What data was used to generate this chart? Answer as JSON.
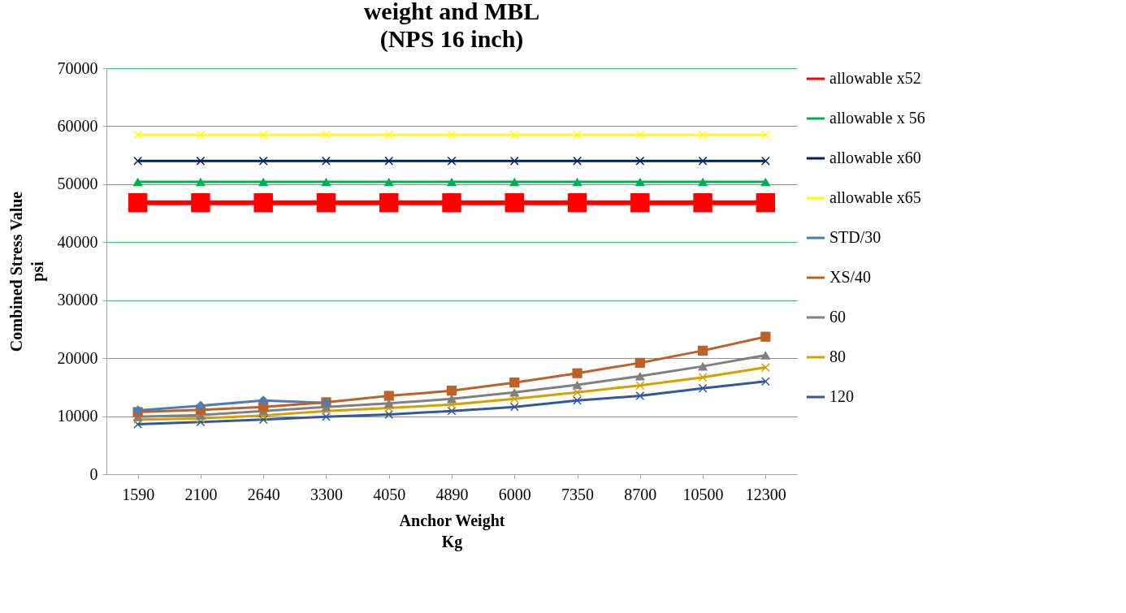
{
  "chart_data": {
    "type": "line",
    "title": [
      "weight and MBL",
      "(NPS 16 inch)"
    ],
    "xlabel": [
      "Anchor Weight",
      "Kg"
    ],
    "ylabel": [
      "Combined Stress Value",
      "psi"
    ],
    "categories": [
      "1590",
      "2100",
      "2640",
      "3300",
      "4050",
      "4890",
      "6000",
      "7350",
      "8700",
      "10500",
      "12300"
    ],
    "ylim": [
      0,
      70000
    ],
    "yticks": [
      0,
      10000,
      20000,
      30000,
      40000,
      50000,
      60000,
      70000
    ],
    "grid": "y",
    "legend": "right",
    "series": [
      {
        "name": "allowable x52",
        "color": "#ff0000",
        "marker": "square",
        "values": [
          46800,
          46800,
          46800,
          46800,
          46800,
          46800,
          46800,
          46800,
          46800,
          46800,
          46800
        ]
      },
      {
        "name": "allowable x 56",
        "color": "#00b050",
        "marker": "triangle",
        "values": [
          50400,
          50400,
          50400,
          50400,
          50400,
          50400,
          50400,
          50400,
          50400,
          50400,
          50400
        ]
      },
      {
        "name": "allowable x60",
        "color": "#002060",
        "marker": "cross",
        "values": [
          54000,
          54000,
          54000,
          54000,
          54000,
          54000,
          54000,
          54000,
          54000,
          54000,
          54000
        ]
      },
      {
        "name": "allowable x65",
        "color": "#ffff00",
        "marker": "cross",
        "values": [
          58500,
          58500,
          58500,
          58500,
          58500,
          58500,
          58500,
          58500,
          58500,
          58500,
          58500
        ]
      },
      {
        "name": "STD/30",
        "color": "#4a7ebb",
        "marker": "diamond",
        "values": [
          11000,
          11800,
          12700,
          12300,
          null,
          null,
          null,
          null,
          null,
          null,
          null
        ]
      },
      {
        "name": "XS/40",
        "color": "#be6127",
        "marker": "square",
        "values": [
          10700,
          11100,
          11600,
          12400,
          13500,
          14400,
          15800,
          17400,
          19200,
          21300,
          23700
        ]
      },
      {
        "name": "60",
        "color": "#808080",
        "marker": "triangle",
        "values": [
          9900,
          10200,
          10900,
          11600,
          12200,
          13000,
          14100,
          15400,
          16900,
          18600,
          20500
        ]
      },
      {
        "name": "80",
        "color": "#d4a100",
        "marker": "cross",
        "values": [
          9400,
          9600,
          10100,
          10900,
          11400,
          12000,
          13000,
          14100,
          15300,
          16700,
          18400
        ]
      },
      {
        "name": "120",
        "color": "#34579e",
        "marker": "cross",
        "values": [
          8600,
          9000,
          9400,
          9900,
          10300,
          10900,
          11600,
          12700,
          13500,
          14800,
          16000
        ]
      }
    ]
  }
}
